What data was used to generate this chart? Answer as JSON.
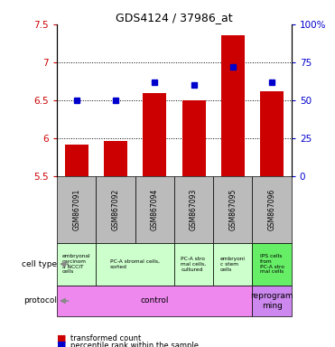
{
  "title": "GDS4124 / 37986_at",
  "samples": [
    "GSM867091",
    "GSM867092",
    "GSM867094",
    "GSM867093",
    "GSM867095",
    "GSM867096"
  ],
  "transformed_counts": [
    5.92,
    5.97,
    6.6,
    6.5,
    7.35,
    6.62
  ],
  "percentile_ranks": [
    50,
    50,
    62,
    60,
    72,
    62
  ],
  "ylim_left": [
    5.5,
    7.5
  ],
  "ylim_right": [
    0,
    100
  ],
  "yticks_left": [
    5.5,
    6.0,
    6.5,
    7.0,
    7.5
  ],
  "yticks_right": [
    0,
    25,
    50,
    75,
    100
  ],
  "ytick_labels_left": [
    "5.5",
    "6",
    "6.5",
    "7",
    "7.5"
  ],
  "ytick_labels_right": [
    "0",
    "25",
    "50",
    "75",
    "100%"
  ],
  "grid_dotted_at": [
    6.0,
    6.5,
    7.0
  ],
  "cell_types": [
    {
      "label": "embryonal\ncarcinom\na NCCIT\ncells",
      "span": [
        0,
        1
      ],
      "color": "#ccffcc"
    },
    {
      "label": "PC-A stromal cells,\nsorted",
      "span": [
        1,
        3
      ],
      "color": "#ccffcc"
    },
    {
      "label": "PC-A stro\nmal cells,\ncultured",
      "span": [
        3,
        4
      ],
      "color": "#ccffcc"
    },
    {
      "label": "embryoni\nc stem\ncells",
      "span": [
        4,
        5
      ],
      "color": "#ccffcc"
    },
    {
      "label": "IPS cells\nfrom\nPC-A stro\nmal cells",
      "span": [
        5,
        6
      ],
      "color": "#66ee66"
    }
  ],
  "protocols": [
    {
      "label": "control",
      "span": [
        0,
        5
      ],
      "color": "#ee88ee"
    },
    {
      "label": "reprogram\nming",
      "span": [
        5,
        6
      ],
      "color": "#cc88ee"
    }
  ],
  "bar_color": "#cc0000",
  "dot_color": "#0000cc",
  "axis_color_left": "#cc0000",
  "axis_color_right": "#0000cc",
  "sample_bg_color": "#bbbbbb",
  "legend_items": [
    {
      "color": "#cc0000",
      "marker": "s",
      "label": "transformed count"
    },
    {
      "color": "#0000cc",
      "marker": "s",
      "label": "percentile rank within the sample"
    }
  ]
}
